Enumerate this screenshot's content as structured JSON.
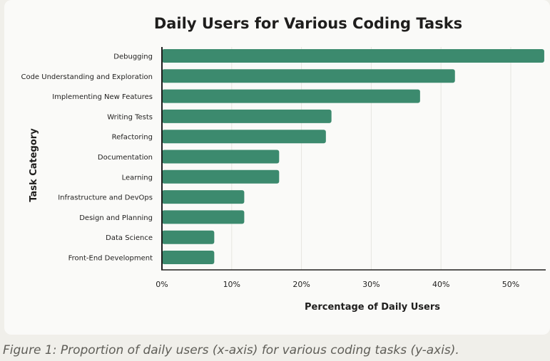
{
  "chart_data": {
    "type": "bar",
    "orientation": "horizontal",
    "title": "Daily Users for Various Coding Tasks",
    "xlabel": "Percentage of Daily Users",
    "ylabel": "Task Category",
    "xlim": [
      0,
      55
    ],
    "xticks": [
      0,
      10,
      20,
      30,
      40,
      50
    ],
    "xtick_labels": [
      "0%",
      "10%",
      "20%",
      "30%",
      "40%",
      "50%"
    ],
    "grid": "vertical",
    "categories": [
      "Debugging",
      "Code Understanding and Exploration",
      "Implementing New Features",
      "Writing Tests",
      "Refactoring",
      "Documentation",
      "Learning",
      "Infrastructure and DevOps",
      "Design and Planning",
      "Data Science",
      "Front-End Development"
    ],
    "values": [
      54.8,
      42.0,
      37.0,
      24.3,
      23.5,
      16.8,
      16.8,
      11.8,
      11.8,
      7.5,
      7.5
    ],
    "bar_color": "#3c8a6e"
  },
  "caption": "Figure 1: Proportion of daily users (x-axis) for various coding tasks (y-axis)."
}
